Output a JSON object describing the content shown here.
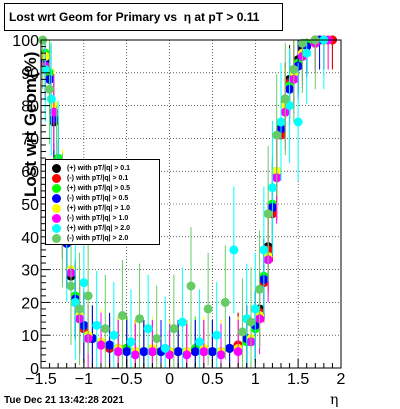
{
  "chart_data": {
    "type": "scatter",
    "title": "Lost wrt Geom for Primary vs  η at pT > 0.11",
    "xlabel": "η",
    "ylabel": "Lost wrt Geom(%)",
    "xlim": [
      -1.5,
      2
    ],
    "ylim": [
      0,
      100
    ],
    "x_ticks": [
      -1.5,
      -1,
      -0.5,
      0,
      0.5,
      1,
      1.5,
      2
    ],
    "x_tick_labels": [
      "−1.5",
      "−1",
      "−0.5",
      "0",
      "0.5",
      "1",
      "1.5",
      "2"
    ],
    "y_ticks": [
      0,
      10,
      20,
      30,
      40,
      50,
      60,
      70,
      80,
      90,
      100
    ],
    "y_tick_labels": [
      "0",
      "10",
      "20",
      "30",
      "40",
      "50",
      "60",
      "70",
      "80",
      "90",
      "100"
    ],
    "grid": true,
    "legend_position": "left-middle",
    "series": [
      {
        "name": "(+) with pT/|q| > 0.1",
        "color": "#000000",
        "x": [
          -1.45,
          -1.4,
          -1.35,
          -1.3,
          -1.25,
          -1.2,
          -1.15,
          -1.1,
          -1.05,
          -1.0,
          -0.9,
          -0.8,
          -0.7,
          -0.6,
          -0.5,
          -0.4,
          -0.3,
          -0.2,
          -0.1,
          0.0,
          0.1,
          0.2,
          0.3,
          0.4,
          0.5,
          0.6,
          0.7,
          0.8,
          0.9,
          1.0,
          1.05,
          1.1,
          1.15,
          1.2,
          1.25,
          1.3,
          1.35,
          1.4,
          1.45,
          1.5,
          1.55,
          1.6,
          1.7,
          1.8,
          1.9
        ],
        "y": [
          92,
          88,
          75,
          62,
          48,
          38,
          28,
          20,
          15,
          12,
          9,
          7,
          6,
          6,
          6,
          5,
          5,
          5,
          5,
          5,
          5,
          5,
          5,
          5,
          5,
          5,
          6,
          7,
          9,
          13,
          18,
          27,
          37,
          48,
          60,
          72,
          82,
          88,
          91,
          94,
          97,
          99,
          100,
          100,
          100
        ]
      },
      {
        "name": "(-) with pT/|q| > 0.1",
        "color": "#ff0000",
        "x": [
          -1.45,
          -1.4,
          -1.35,
          -1.3,
          -1.25,
          -1.2,
          -1.15,
          -1.1,
          -1.05,
          -1.0,
          -0.9,
          -0.8,
          -0.7,
          -0.6,
          -0.5,
          -0.4,
          -0.3,
          -0.2,
          -0.1,
          0.0,
          0.1,
          0.2,
          0.3,
          0.4,
          0.5,
          0.6,
          0.7,
          0.8,
          0.9,
          1.0,
          1.05,
          1.1,
          1.15,
          1.2,
          1.25,
          1.3,
          1.35,
          1.4,
          1.45,
          1.5,
          1.55,
          1.6,
          1.7,
          1.8,
          1.9
        ],
        "y": [
          93,
          89,
          76,
          63,
          49,
          39,
          29,
          21,
          16,
          12,
          9,
          7,
          6,
          5,
          6,
          5,
          5,
          5,
          5,
          5,
          5,
          5,
          5,
          5,
          5,
          5,
          6,
          7,
          9,
          12,
          17,
          26,
          36,
          47,
          59,
          71,
          81,
          87,
          90,
          93,
          96,
          99,
          100,
          100,
          100
        ]
      },
      {
        "name": "(+) with pT/|q| > 0.5",
        "color": "#00ff00",
        "x": [
          -1.45,
          -1.4,
          -1.35,
          -1.3,
          -1.2,
          -1.1,
          -1.0,
          -0.9,
          -0.7,
          -0.5,
          -0.3,
          -0.1,
          0.1,
          0.3,
          0.5,
          0.7,
          0.9,
          1.0,
          1.1,
          1.2,
          1.3,
          1.4,
          1.5,
          1.6,
          1.75
        ],
        "y": [
          96,
          90,
          78,
          64,
          40,
          22,
          13,
          9,
          7,
          6,
          5,
          5,
          5,
          6,
          5,
          6,
          8,
          12,
          28,
          50,
          74,
          86,
          93,
          99,
          100
        ]
      },
      {
        "name": "(-) with pT/|q| > 0.5",
        "color": "#0000ff",
        "x": [
          -1.45,
          -1.4,
          -1.35,
          -1.3,
          -1.2,
          -1.1,
          -1.0,
          -0.9,
          -0.7,
          -0.5,
          -0.3,
          -0.1,
          0.1,
          0.3,
          0.5,
          0.7,
          0.9,
          1.0,
          1.1,
          1.2,
          1.3,
          1.4,
          1.5,
          1.6,
          1.75
        ],
        "y": [
          94,
          88,
          76,
          55,
          38,
          21,
          13,
          9,
          7,
          5,
          5,
          5,
          5,
          5,
          5,
          6,
          9,
          13,
          27,
          49,
          73,
          85,
          92,
          98,
          100
        ]
      },
      {
        "name": "(+) with pT/|q| > 1.0",
        "color": "#ffff00",
        "x": [
          -1.45,
          -1.35,
          -1.25,
          -1.15,
          -1.05,
          -0.95,
          -0.8,
          -0.6,
          -0.4,
          -0.2,
          0.0,
          0.2,
          0.4,
          0.6,
          0.8,
          0.95,
          1.05,
          1.15,
          1.25,
          1.35,
          1.45,
          1.55,
          1.7,
          1.85
        ],
        "y": [
          95,
          80,
          52,
          30,
          16,
          10,
          8,
          6,
          5,
          6,
          5,
          5,
          6,
          5,
          6,
          9,
          16,
          34,
          60,
          80,
          90,
          96,
          99,
          100
        ]
      },
      {
        "name": "(-) with pT/|q| > 1.0",
        "color": "#ff00ff",
        "x": [
          -1.45,
          -1.35,
          -1.25,
          -1.15,
          -1.05,
          -0.95,
          -0.8,
          -0.6,
          -0.4,
          -0.2,
          0.0,
          0.2,
          0.4,
          0.6,
          0.8,
          0.95,
          1.05,
          1.15,
          1.25,
          1.35,
          1.45,
          1.55,
          1.7,
          1.85
        ],
        "y": [
          92,
          78,
          50,
          29,
          15,
          9,
          7,
          5,
          4,
          5,
          4,
          4,
          5,
          4,
          5,
          8,
          15,
          33,
          58,
          78,
          88,
          95,
          99,
          100
        ]
      },
      {
        "name": "(+) with pT/|q| > 2.0",
        "color": "#00ffff",
        "x": [
          -1.45,
          -1.38,
          -1.3,
          -1.2,
          -1.1,
          -1.0,
          -0.85,
          -0.65,
          -0.45,
          -0.25,
          -0.05,
          0.15,
          0.35,
          0.55,
          0.75,
          0.9,
          1.0,
          1.1,
          1.2,
          1.3,
          1.4,
          1.5,
          1.6,
          1.8
        ],
        "y": [
          91,
          82,
          62,
          40,
          20,
          26,
          13,
          10,
          8,
          12,
          6,
          14,
          8,
          10,
          36,
          15,
          18,
          36,
          55,
          75,
          80,
          75,
          96,
          100
        ]
      },
      {
        "name": "(-) with pT/|q| > 2.0",
        "color": "#66cc66",
        "x": [
          -1.48,
          -1.4,
          -1.32,
          -1.25,
          -1.15,
          -1.05,
          -0.95,
          -0.75,
          -0.55,
          -0.35,
          -0.15,
          0.05,
          0.25,
          0.45,
          0.65,
          0.85,
          0.95,
          1.05,
          1.15,
          1.25,
          1.35,
          1.45,
          1.55,
          1.7
        ],
        "y": [
          100,
          85,
          60,
          45,
          25,
          18,
          22,
          12,
          16,
          15,
          9,
          12,
          25,
          18,
          20,
          11,
          14,
          24,
          47,
          71,
          82,
          91,
          99,
          100
        ]
      }
    ]
  },
  "timestamp": "Tue Dec 21 13:42:28 2021"
}
